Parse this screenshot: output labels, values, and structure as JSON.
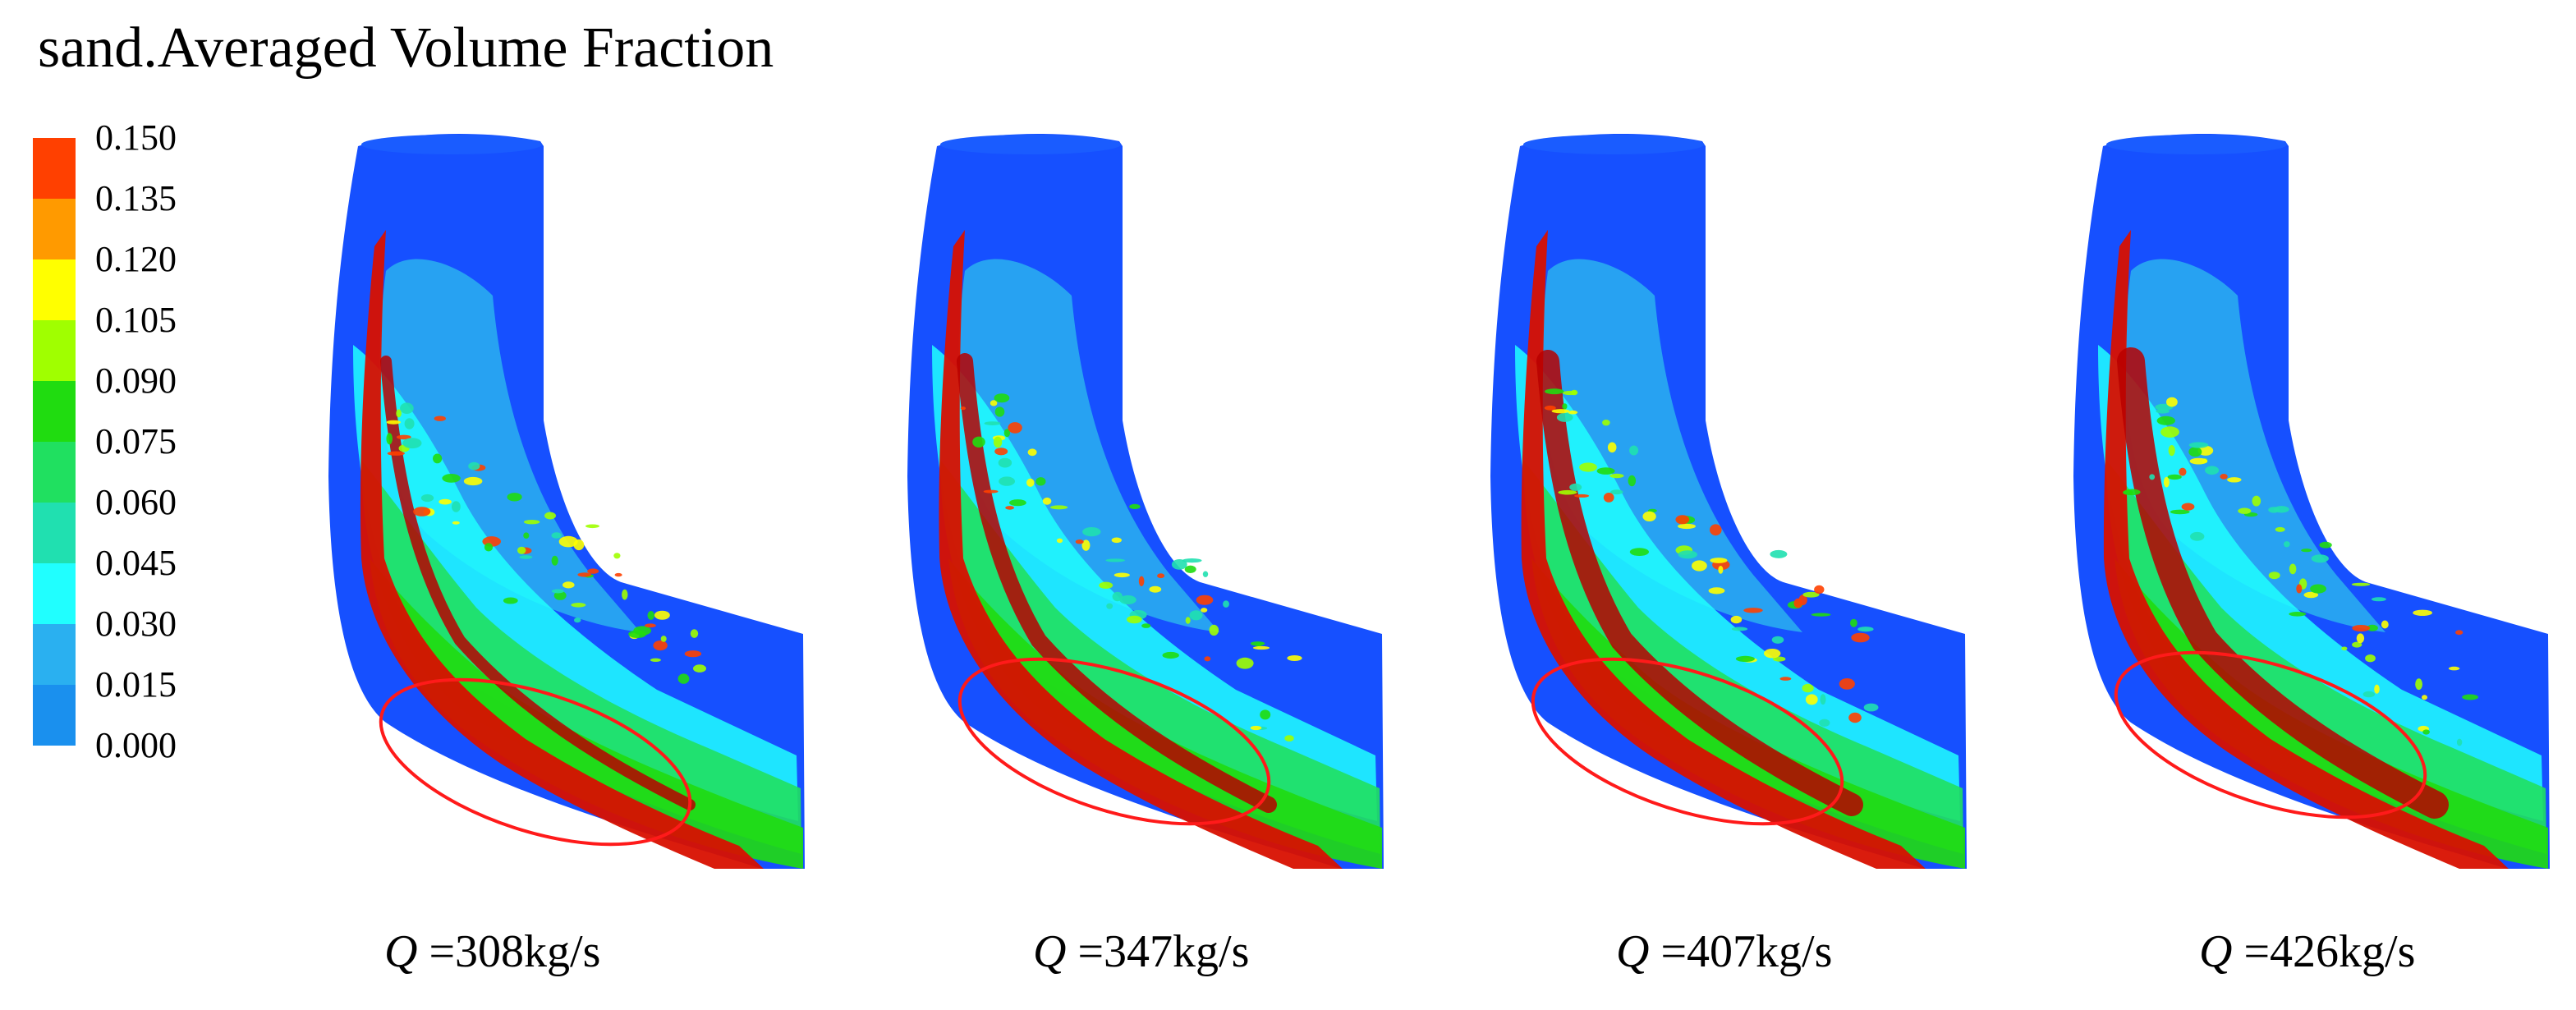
{
  "title": "sand.Averaged Volume Fraction",
  "legend": {
    "ticks": [
      "0.150",
      "0.135",
      "0.120",
      "0.105",
      "0.090",
      "0.075",
      "0.060",
      "0.045",
      "0.030",
      "0.015",
      "0.000"
    ],
    "colors": [
      "#ff4000",
      "#ff9a00",
      "#ffff00",
      "#a0ff00",
      "#20dc10",
      "#20e060",
      "#20e0b0",
      "#20ffff",
      "#2ab0f0",
      "#1a90ee",
      "#1650ff"
    ]
  },
  "panels": [
    {
      "symbol": "Q",
      "text": " =308kg/s"
    },
    {
      "symbol": "Q",
      "text": " =347kg/s"
    },
    {
      "symbol": "Q",
      "text": " =407kg/s"
    },
    {
      "symbol": "Q",
      "text": " =426kg/s"
    }
  ],
  "colors": {
    "pipe_base": "#1650ff",
    "highlight_ellipse": "#ff1a1a"
  }
}
